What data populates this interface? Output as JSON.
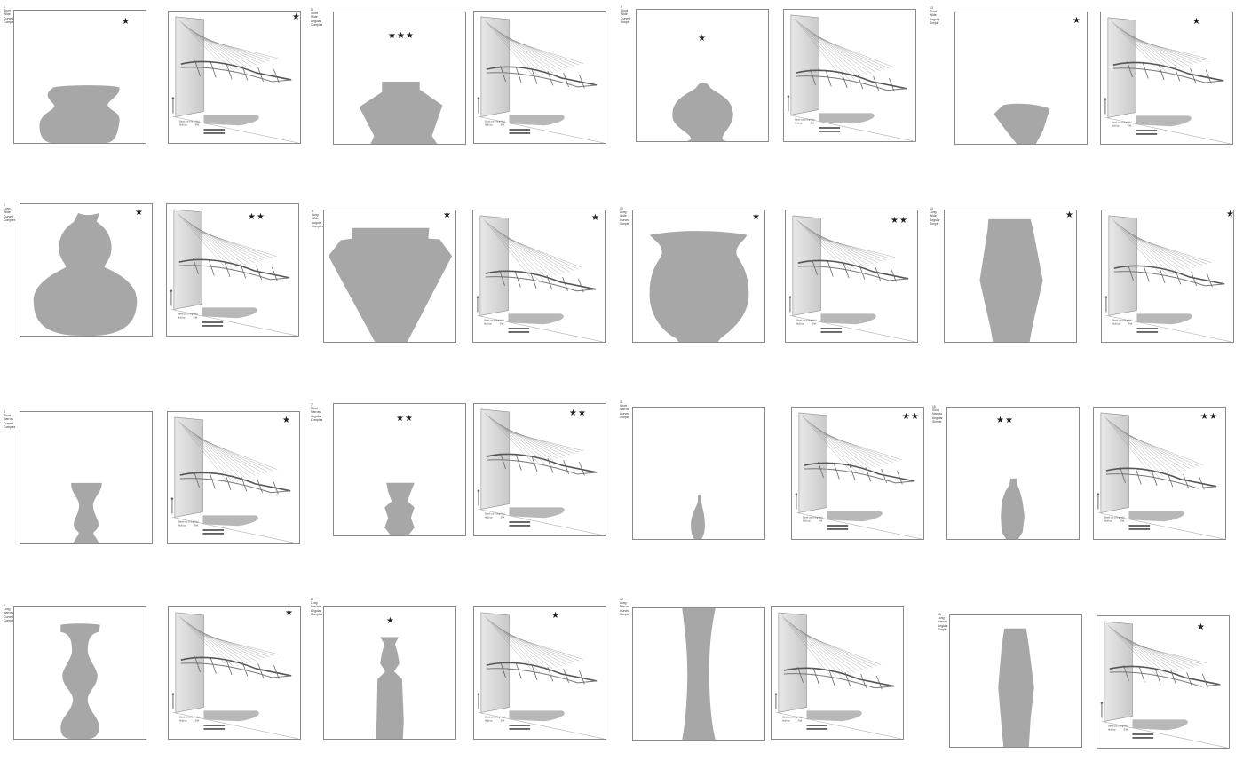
{
  "star_glyph": "★",
  "vase_color": "#a7a7a7",
  "grid": [
    {
      "id": "cell-r1c1",
      "label": [
        "1",
        "Short",
        "Wide",
        "Curved",
        "Complex"
      ],
      "vase_stars": 1,
      "sim_stars": 1,
      "shape": "complex-wide-short"
    },
    {
      "id": "cell-r1c2",
      "label": [
        "5",
        "Short",
        "Wide",
        "Angular",
        "Complex"
      ],
      "vase_stars": 3,
      "sim_stars": 0,
      "shape": "angular-wide-short"
    },
    {
      "id": "cell-r1c3",
      "label": [
        "9",
        "Short",
        "Wide",
        "Curved",
        "Simple"
      ],
      "vase_stars": 1,
      "sim_stars": 0,
      "shape": "curved-simple-short"
    },
    {
      "id": "cell-r1c4",
      "label": [
        "13",
        "Short",
        "Wide",
        "Angular",
        "Simple"
      ],
      "vase_stars": 1,
      "sim_stars": 1,
      "shape": "angular-simple-short"
    },
    {
      "id": "cell-r2c1",
      "label": [
        "2",
        "Long",
        "Wide",
        "Curved",
        "Complex"
      ],
      "vase_stars": 1,
      "sim_stars": 2,
      "shape": "gourd-tall"
    },
    {
      "id": "cell-r2c2",
      "label": [
        "6",
        "Long",
        "Wide",
        "Angular",
        "Complex"
      ],
      "vase_stars": 1,
      "sim_stars": 1,
      "shape": "angular-wide-tall"
    },
    {
      "id": "cell-r2c3",
      "label": [
        "10",
        "Long",
        "Wide",
        "Curved",
        "Simple"
      ],
      "vase_stars": 1,
      "sim_stars": 2,
      "shape": "urn-tall"
    },
    {
      "id": "cell-r2c4",
      "label": [
        "14",
        "Long",
        "Wide",
        "Angular",
        "Simple"
      ],
      "vase_stars": 1,
      "sim_stars": 1,
      "shape": "hex-tall"
    },
    {
      "id": "cell-r3c1",
      "label": [
        "3",
        "Short",
        "Narrow",
        "Curved",
        "Complex"
      ],
      "vase_stars": 0,
      "sim_stars": 1,
      "shape": "narrow-curved-short"
    },
    {
      "id": "cell-r3c2",
      "label": [
        "7",
        "Short",
        "Narrow",
        "Angular",
        "Complex"
      ],
      "vase_stars": 2,
      "sim_stars": 2,
      "shape": "narrow-angular-short"
    },
    {
      "id": "cell-r3c3",
      "label": [
        "11",
        "Short",
        "Narrow",
        "Curved",
        "Simple"
      ],
      "vase_stars": 0,
      "sim_stars": 2,
      "shape": "bottle-tiny"
    },
    {
      "id": "cell-r3c4",
      "label": [
        "15",
        "Short",
        "Narrow",
        "Angular",
        "Simple"
      ],
      "vase_stars": 2,
      "sim_stars": 2,
      "shape": "bottle-angular"
    },
    {
      "id": "cell-r4c1",
      "label": [
        "4",
        "Long",
        "Narrow",
        "Curved",
        "Complex"
      ],
      "vase_stars": 0,
      "sim_stars": 1,
      "shape": "baluster-tall"
    },
    {
      "id": "cell-r4c2",
      "label": [
        "8",
        "Long",
        "Narrow",
        "Angular",
        "Complex"
      ],
      "vase_stars": 1,
      "sim_stars": 1,
      "shape": "angular-bottle-tall"
    },
    {
      "id": "cell-r4c3",
      "label": [
        "12",
        "Long",
        "Narrow",
        "Curved",
        "Simple"
      ],
      "vase_stars": 0,
      "sim_stars": 0,
      "shape": "hourglass-tall"
    },
    {
      "id": "cell-r4c4",
      "label": [
        "16",
        "Long",
        "Narrow",
        "Angular",
        "Simple"
      ],
      "vase_stars": 0,
      "sim_stars": 1,
      "shape": "hex-narrow-tall"
    }
  ],
  "sim_legend": [
    "Stand out of ring",
    "Hold top",
    "Hold",
    "Shift"
  ]
}
